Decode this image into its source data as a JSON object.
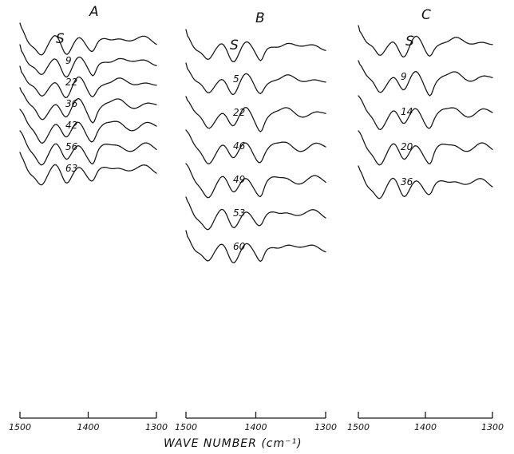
{
  "chart_data": {
    "type": "line",
    "xlabel": "WAVE NUMBER (cm⁻¹)",
    "xlim": [
      1500,
      1300
    ],
    "x_ticks": [
      1500,
      1400,
      1300
    ],
    "x_tick_labels": [
      "1500",
      "1400",
      "1300"
    ],
    "panels": [
      {
        "title": "A",
        "series": [
          {
            "name": "S"
          },
          {
            "name": "9"
          },
          {
            "name": "22"
          },
          {
            "name": "36"
          },
          {
            "name": "42"
          },
          {
            "name": "56"
          },
          {
            "name": "63"
          }
        ]
      },
      {
        "title": "B",
        "series": [
          {
            "name": "S"
          },
          {
            "name": "5"
          },
          {
            "name": "22"
          },
          {
            "name": "46"
          },
          {
            "name": "49"
          },
          {
            "name": "53"
          },
          {
            "name": "60"
          }
        ]
      },
      {
        "title": "C",
        "series": [
          {
            "name": "S"
          },
          {
            "name": "9"
          },
          {
            "name": "14"
          },
          {
            "name": "20"
          },
          {
            "name": "36"
          }
        ]
      }
    ]
  }
}
